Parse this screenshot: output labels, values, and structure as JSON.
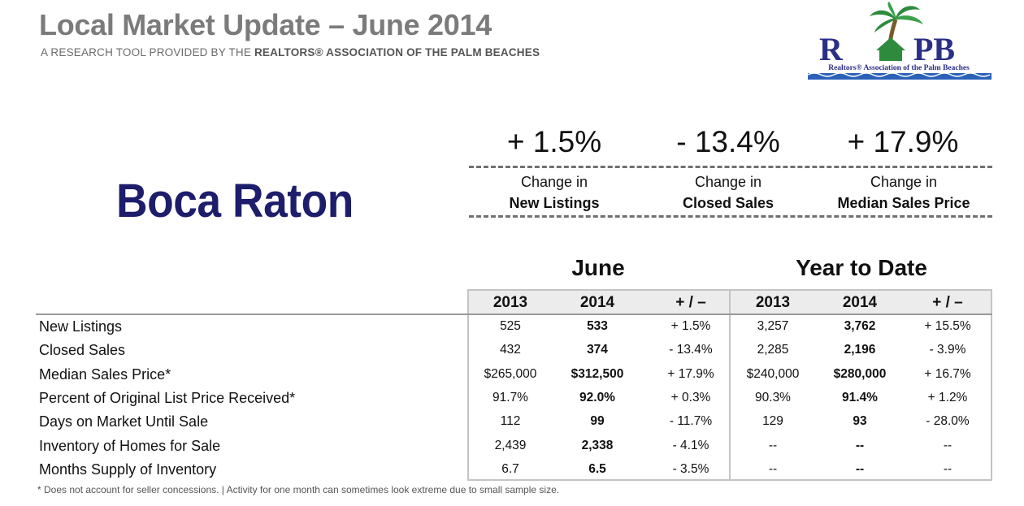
{
  "header": {
    "title": "Local Market Update – June 2014",
    "subtitle_prefix": "A RESEARCH TOOL PROVIDED BY THE ",
    "subtitle_bold": "REALTORS® ASSOCIATION OF THE PALM BEACHES"
  },
  "logo": {
    "letters": "RAPB",
    "caption": "Realtors® Association of the Palm Beaches"
  },
  "city": "Boca Raton",
  "kpis": [
    {
      "pct": "+ 1.5%",
      "line1": "Change in",
      "line2": "New Listings"
    },
    {
      "pct": "- 13.4%",
      "line1": "Change in",
      "line2": "Closed Sales"
    },
    {
      "pct": "+ 17.9%",
      "line1": "Change in",
      "line2": "Median Sales Price"
    }
  ],
  "table": {
    "groups": [
      "June",
      "Year to Date"
    ],
    "columns": [
      "2013",
      "2014",
      "+ / –",
      "2013",
      "2014",
      "+ / –"
    ],
    "rows": [
      {
        "label": "New Listings",
        "values": [
          "525",
          "533",
          "+ 1.5%",
          "3,257",
          "3,762",
          "+ 15.5%"
        ]
      },
      {
        "label": "Closed Sales",
        "values": [
          "432",
          "374",
          "- 13.4%",
          "2,285",
          "2,196",
          "- 3.9%"
        ]
      },
      {
        "label": "Median Sales Price*",
        "values": [
          "$265,000",
          "$312,500",
          "+ 17.9%",
          "$240,000",
          "$280,000",
          "+ 16.7%"
        ]
      },
      {
        "label": "Percent of Original List Price Received*",
        "values": [
          "91.7%",
          "92.0%",
          "+ 0.3%",
          "90.3%",
          "91.4%",
          "+ 1.2%"
        ]
      },
      {
        "label": "Days on Market Until Sale",
        "values": [
          "112",
          "99",
          "- 11.7%",
          "129",
          "93",
          "- 28.0%"
        ]
      },
      {
        "label": "Inventory of Homes for Sale",
        "values": [
          "2,439",
          "2,338",
          "- 4.1%",
          "--",
          "--",
          "--"
        ]
      },
      {
        "label": "Months Supply of Inventory",
        "values": [
          "6.7",
          "6.5",
          "- 3.5%",
          "--",
          "--",
          "--"
        ]
      }
    ]
  },
  "footnote": "* Does not account for seller concessions.  |  Activity for one month can sometimes look extreme due to small sample size.",
  "colors": {
    "city": "#1d1d6b",
    "logo_blue": "#2b2f86",
    "logo_green": "#2e8b3e",
    "title_gray": "#7b7b7b"
  }
}
